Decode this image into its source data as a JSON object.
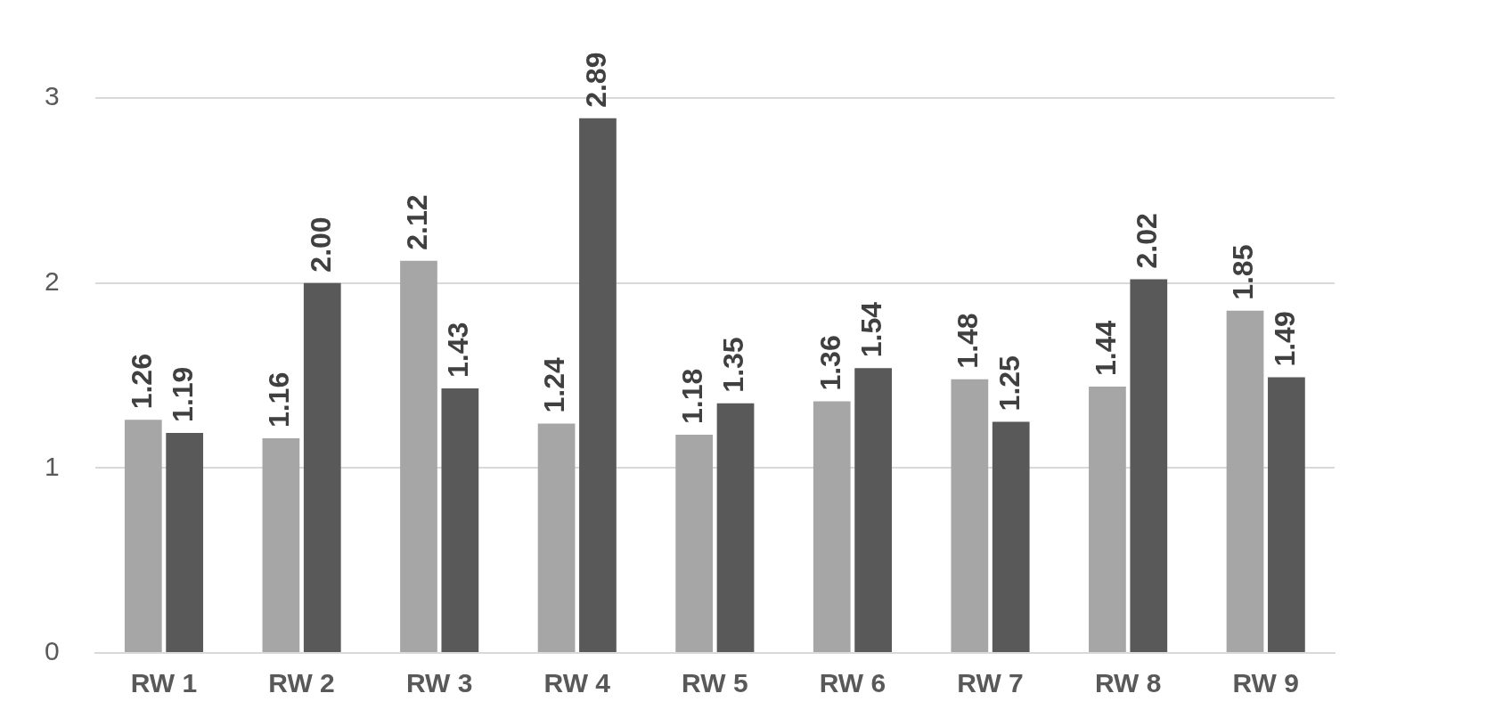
{
  "chart_data": {
    "type": "bar",
    "categories": [
      "RW 1",
      "RW 2",
      "RW 3",
      "RW 4",
      "RW 5",
      "RW 6",
      "RW 7",
      "RW 8",
      "RW 9"
    ],
    "series": [
      {
        "color": "#a6a6a6",
        "values": [
          1.26,
          1.16,
          2.12,
          1.24,
          1.18,
          1.36,
          1.48,
          1.44,
          1.85
        ],
        "value_labels": [
          "1.26",
          "1.16",
          "2.12",
          "1.24",
          "1.18",
          "1.36",
          "1.48",
          "1.44",
          "1.85"
        ]
      },
      {
        "color": "#595959",
        "values": [
          1.19,
          2.0,
          1.43,
          2.89,
          1.35,
          1.54,
          1.25,
          2.02,
          1.49
        ],
        "value_labels": [
          "1.19",
          "2.00",
          "1.43",
          "2.89",
          "1.35",
          "1.54",
          "1.25",
          "2.02",
          "1.49"
        ]
      }
    ],
    "ylim": [
      0,
      3
    ],
    "yticks": [
      0,
      1,
      2,
      3
    ],
    "grid": "y"
  }
}
